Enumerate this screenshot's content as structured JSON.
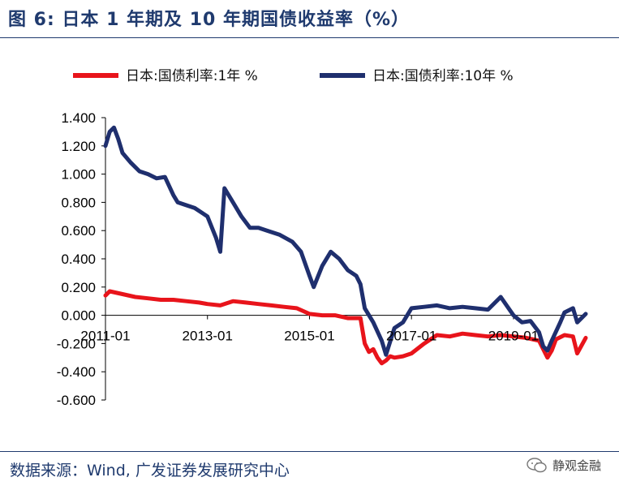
{
  "title": "图 6:  日本 1 年期及 10 年期国债收益率（%）",
  "source": "数据来源：Wind, 广发证券发展研究中心",
  "watermark": {
    "text": "静观金融",
    "icon": "wechat-icon"
  },
  "chart_data": {
    "type": "line",
    "title": "",
    "xlabel": "",
    "ylabel": "",
    "x_tick_labels": [
      "2011-01",
      "2013-01",
      "2015-01",
      "2017-01",
      "2019-01"
    ],
    "x_range": [
      "2011-01",
      "2020-06"
    ],
    "y_tick_labels": [
      "1.400",
      "1.200",
      "1.000",
      "0.800",
      "0.600",
      "0.400",
      "0.200",
      "0.000",
      "-0.200",
      "-0.400",
      "-0.600"
    ],
    "ylim": [
      -0.6,
      1.4
    ],
    "grid": false,
    "legend_position": "top",
    "series": [
      {
        "name": "日本:国债利率:1年 %",
        "color": "#e8141b",
        "x": [
          "2011-01",
          "2011-02",
          "2011-05",
          "2011-08",
          "2011-11",
          "2012-02",
          "2012-05",
          "2012-08",
          "2012-11",
          "2013-01",
          "2013-04",
          "2013-07",
          "2013-10",
          "2014-01",
          "2014-04",
          "2014-07",
          "2014-10",
          "2015-01",
          "2015-04",
          "2015-07",
          "2015-10",
          "2016-01",
          "2016-02",
          "2016-03",
          "2016-04",
          "2016-05",
          "2016-06",
          "2016-07",
          "2016-08",
          "2016-09",
          "2016-11",
          "2017-01",
          "2017-04",
          "2017-07",
          "2017-10",
          "2018-01",
          "2018-04",
          "2018-07",
          "2018-10",
          "2019-01",
          "2019-04",
          "2019-07",
          "2019-08",
          "2019-09",
          "2019-10",
          "2019-11",
          "2020-01",
          "2020-03",
          "2020-04",
          "2020-06"
        ],
        "y": [
          0.14,
          0.17,
          0.15,
          0.13,
          0.12,
          0.11,
          0.11,
          0.1,
          0.09,
          0.08,
          0.07,
          0.1,
          0.09,
          0.08,
          0.07,
          0.06,
          0.05,
          0.01,
          0.0,
          0.0,
          -0.02,
          -0.02,
          -0.2,
          -0.26,
          -0.24,
          -0.3,
          -0.34,
          -0.32,
          -0.29,
          -0.3,
          -0.29,
          -0.27,
          -0.2,
          -0.14,
          -0.15,
          -0.13,
          -0.14,
          -0.15,
          -0.14,
          -0.15,
          -0.16,
          -0.18,
          -0.24,
          -0.3,
          -0.25,
          -0.17,
          -0.14,
          -0.15,
          -0.27,
          -0.16
        ]
      },
      {
        "name": "日本:国债利率:10年 %",
        "color": "#1f2f6e",
        "x": [
          "2011-01",
          "2011-02",
          "2011-03",
          "2011-04",
          "2011-05",
          "2011-07",
          "2011-09",
          "2011-11",
          "2012-01",
          "2012-03",
          "2012-05",
          "2012-06",
          "2012-08",
          "2012-10",
          "2012-12",
          "2013-01",
          "2013-03",
          "2013-04",
          "2013-05",
          "2013-07",
          "2013-09",
          "2013-11",
          "2014-01",
          "2014-03",
          "2014-06",
          "2014-09",
          "2014-11",
          "2015-01",
          "2015-02",
          "2015-04",
          "2015-06",
          "2015-08",
          "2015-10",
          "2015-12",
          "2016-01",
          "2016-02",
          "2016-04",
          "2016-06",
          "2016-07",
          "2016-09",
          "2016-11",
          "2017-01",
          "2017-04",
          "2017-07",
          "2017-10",
          "2018-01",
          "2018-04",
          "2018-07",
          "2018-10",
          "2019-01",
          "2019-03",
          "2019-05",
          "2019-07",
          "2019-08",
          "2019-09",
          "2019-10",
          "2019-12",
          "2020-01",
          "2020-03",
          "2020-04",
          "2020-06"
        ],
        "y": [
          1.2,
          1.3,
          1.33,
          1.25,
          1.15,
          1.08,
          1.02,
          1.0,
          0.97,
          0.98,
          0.85,
          0.8,
          0.78,
          0.76,
          0.72,
          0.7,
          0.55,
          0.45,
          0.9,
          0.8,
          0.7,
          0.62,
          0.62,
          0.6,
          0.57,
          0.52,
          0.45,
          0.28,
          0.2,
          0.35,
          0.45,
          0.4,
          0.32,
          0.28,
          0.22,
          0.05,
          -0.05,
          -0.18,
          -0.28,
          -0.09,
          -0.05,
          0.05,
          0.06,
          0.07,
          0.05,
          0.06,
          0.05,
          0.04,
          0.13,
          0.0,
          -0.05,
          -0.04,
          -0.12,
          -0.22,
          -0.25,
          -0.18,
          -0.05,
          0.02,
          0.05,
          -0.05,
          0.01
        ]
      }
    ]
  }
}
